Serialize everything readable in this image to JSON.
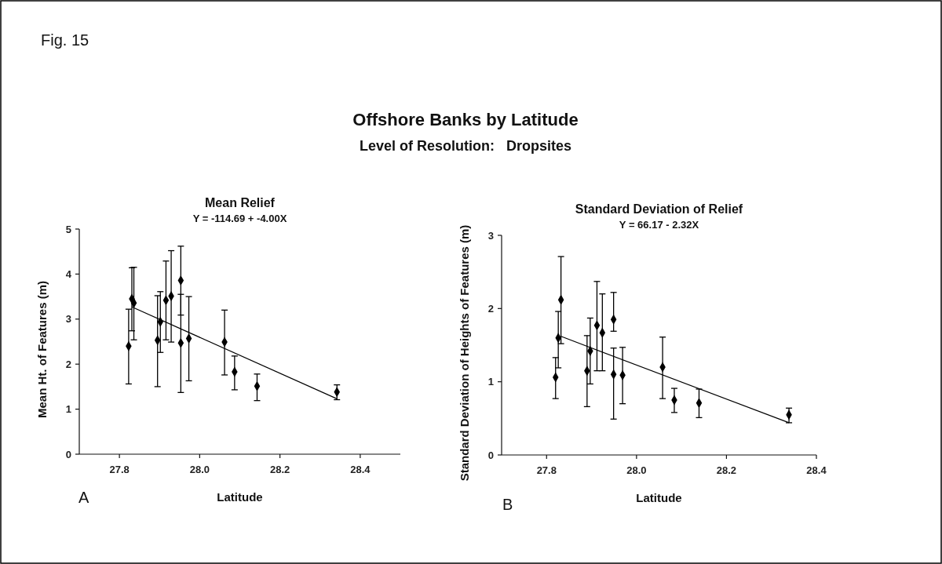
{
  "chart_data": [
    {
      "type": "scatter",
      "title": "Mean Relief",
      "subtitle": "Y = -114.69 + -4.00X",
      "xlabel": "Latitude",
      "ylabel": "Mean Ht. of Features (m)",
      "annotations": [
        "Fig. 15",
        "Offshore Banks by Latitude",
        "Level of Resolution:   Dropsites",
        "A"
      ],
      "xlim": [
        27.7,
        28.5
      ],
      "xticks": [
        27.8,
        {
          "value": 28,
          "label": "28.0"
        },
        28.2,
        28.4
      ],
      "ylim": [
        0,
        5
      ],
      "yticks": [
        0,
        1,
        2,
        3,
        4,
        5
      ],
      "grid": false,
      "series": [
        {
          "color": "#000000",
          "marker": "diamond",
          "x": [
            27.823,
            27.831,
            27.836,
            27.895,
            27.902,
            27.916,
            27.929,
            27.953,
            27.953,
            27.973,
            28.062,
            28.087,
            28.143,
            28.342
          ],
          "values": [
            2.4,
            3.45,
            3.36,
            2.53,
            2.94,
            3.42,
            3.51,
            3.86,
            2.47,
            2.57,
            2.49,
            1.83,
            1.51,
            1.38
          ],
          "errors": [
            [
              1.56,
              3.22
            ],
            [
              2.74,
              4.14
            ],
            [
              2.54,
              4.15
            ],
            [
              1.5,
              3.52
            ],
            [
              2.26,
              3.61
            ],
            [
              2.54,
              4.29
            ],
            [
              2.49,
              4.52
            ],
            [
              3.09,
              4.62
            ],
            [
              1.37,
              3.55
            ],
            [
              1.63,
              3.5
            ],
            [
              1.76,
              3.2
            ],
            [
              1.43,
              2.18
            ],
            [
              1.19,
              1.78
            ],
            [
              1.21,
              1.54
            ]
          ]
        },
        {
          "type": "line",
          "color": "#000000",
          "marker": "none",
          "line_style": "solid",
          "x": [
            27.831,
            28.342
          ],
          "values": [
            3.27,
            1.23
          ]
        }
      ]
    },
    {
      "type": "scatter",
      "title": "Standard Deviation of Relief",
      "subtitle": "Y = 66.17 - 2.32X",
      "xlabel": "Latitude",
      "ylabel": "Standard Deviation of Heights of Features (m)",
      "annotations": [
        "B"
      ],
      "xlim": [
        27.7,
        28.4
      ],
      "xticks": [
        27.8,
        {
          "value": 28,
          "label": "28.0"
        },
        28.2,
        28.4
      ],
      "ylim": [
        0,
        3
      ],
      "yticks": [
        0,
        1,
        2,
        3
      ],
      "grid": false,
      "series": [
        {
          "color": "#000000",
          "marker": "diamond",
          "x": [
            27.82,
            27.826,
            27.832,
            27.89,
            27.897,
            27.912,
            27.924,
            27.949,
            27.949,
            27.969,
            28.058,
            28.084,
            28.139,
            28.339
          ],
          "values": [
            1.06,
            1.6,
            2.12,
            1.15,
            1.42,
            1.77,
            1.67,
            1.85,
            1.1,
            1.09,
            1.2,
            0.75,
            0.71,
            0.55
          ],
          "errors": [
            [
              0.77,
              1.33
            ],
            [
              1.19,
              1.96
            ],
            [
              1.52,
              2.71
            ],
            [
              0.66,
              1.63
            ],
            [
              0.97,
              1.87
            ],
            [
              1.15,
              2.37
            ],
            [
              1.15,
              2.2
            ],
            [
              1.69,
              2.22
            ],
            [
              0.49,
              1.46
            ],
            [
              0.7,
              1.47
            ],
            [
              0.77,
              1.61
            ],
            [
              0.58,
              0.91
            ],
            [
              0.51,
              0.9
            ],
            [
              0.44,
              0.64
            ]
          ]
        },
        {
          "type": "line",
          "color": "#000000",
          "marker": "none",
          "line_style": "solid",
          "x": [
            27.832,
            28.339
          ],
          "values": [
            1.62,
            0.44
          ]
        }
      ]
    }
  ]
}
